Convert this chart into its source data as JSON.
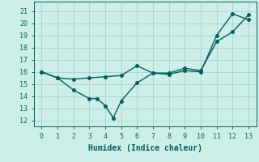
{
  "xlabel": "Humidex (Indice chaleur)",
  "bg_color": "#ceeee8",
  "grid_color": "#aad8d0",
  "line_color": "#006060",
  "xlim": [
    -0.5,
    13.5
  ],
  "ylim": [
    11.5,
    21.8
  ],
  "yticks": [
    12,
    13,
    14,
    15,
    16,
    17,
    18,
    19,
    20,
    21
  ],
  "xticks": [
    0,
    1,
    2,
    3,
    4,
    5,
    6,
    7,
    8,
    9,
    10,
    11,
    12,
    13
  ],
  "line1_x": [
    0,
    1,
    2,
    3,
    3.5,
    4,
    4.5,
    5,
    6,
    7,
    8,
    9,
    10,
    11,
    12,
    13
  ],
  "line1_y": [
    16.0,
    15.5,
    14.5,
    13.8,
    13.8,
    13.2,
    12.2,
    13.6,
    15.1,
    15.9,
    15.8,
    16.1,
    16.0,
    19.0,
    20.8,
    20.3
  ],
  "line2_x": [
    0,
    1,
    2,
    3,
    4,
    5,
    6,
    7,
    8,
    9,
    10,
    11,
    12,
    13
  ],
  "line2_y": [
    16.0,
    15.5,
    15.4,
    15.5,
    15.6,
    15.7,
    16.5,
    15.9,
    15.9,
    16.3,
    16.1,
    18.5,
    19.3,
    20.7
  ],
  "marker_size": 2.5,
  "line_width": 1.0,
  "tick_fontsize": 6.0,
  "xlabel_fontsize": 7.0
}
